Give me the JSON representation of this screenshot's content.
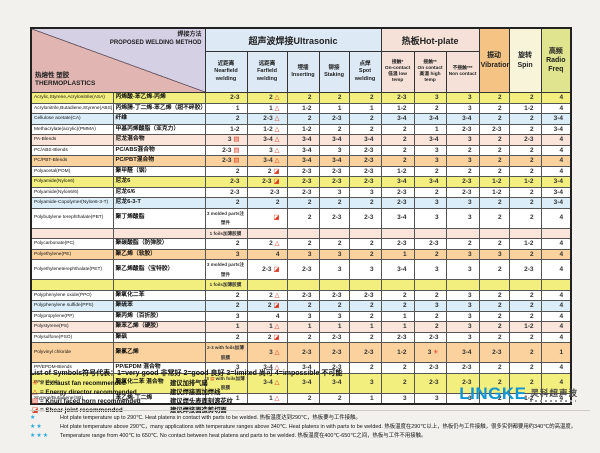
{
  "table": {
    "header": {
      "corner": {
        "method": "焊接方法\nPROPOSED WELDING METHOD",
        "material": "热熔性 塑胶\nTHERMOPLASTICS"
      },
      "groups": [
        {
          "label": "超声波焊接Ultrasonic"
        },
        {
          "label": "热板Hot-plate"
        }
      ],
      "singles": [
        "振动\nVibration",
        "旋转\nSpin",
        "高频\nRadio Freq"
      ],
      "columns": [
        "近距离\nNearfield\nwelding",
        "远距离\nFarfield\nwelding",
        "埋插\nInserting",
        "铆接\nStaking",
        "点焊\nSpot\nwelding",
        "接触*\nOn-contact\n低温 low temp",
        "接触**\nOn contact\n高温 high temp",
        "不接触***\nNon contact"
      ]
    },
    "rows": [
      {
        "en": "Acrylic,Styrene,Acrylonitrile(ASA)",
        "cn": "丙烯酸-苯乙烯-丙烯",
        "color": "yellow",
        "values": [
          "2-3",
          "2 △",
          "2",
          "2",
          "2",
          "2-3",
          "3",
          "3",
          "2",
          "2",
          "4"
        ]
      },
      {
        "en": "Acrylonitrile,Butadiene,Styrene(ABS)",
        "cn": "丙烯腈-丁二烯-苯乙烯（超不碎胶）",
        "color": "white",
        "values": [
          "1",
          "1 △",
          "1-2",
          "1",
          "1",
          "1-2",
          "2",
          "3",
          "2",
          "1-2",
          "4"
        ]
      },
      {
        "en": "Cellulose acetate(CA)",
        "cn": "纤维",
        "color": "blue",
        "values": [
          "2",
          "2-3 △",
          "2",
          "2-3",
          "2",
          "3-4",
          "3-4",
          "3-4",
          "2",
          "2",
          "3-4"
        ]
      },
      {
        "en": "Methacrylate(acrylic)(PMMA)",
        "cn": "甲基丙烯酸脂（亚克力）",
        "color": "white",
        "values": [
          "1-2",
          "1-2 △",
          "1-2",
          "2",
          "2",
          "2",
          "1",
          "2-3",
          "2-3",
          "2",
          "3-4"
        ]
      },
      {
        "en": "PA-Blends",
        "cn": "尼龙混合物",
        "color": "pink",
        "values": [
          "3 ▤",
          "3-4 △",
          "3-4",
          "3-4",
          "3-4",
          "2",
          "3-4",
          "3",
          "2",
          "2-3",
          "4"
        ]
      },
      {
        "en": "PC/ABS-Blends",
        "cn": "PC/ABS混合物",
        "color": "white",
        "values": [
          "2-3 ▤",
          "3 △",
          "3-4",
          "3",
          "2-3",
          "2",
          "3",
          "2",
          "2",
          "2",
          "4"
        ]
      },
      {
        "en": "PC/PBT-Blends",
        "cn": "PC/PBT混合物",
        "color": "orange",
        "values": [
          "2-3 ▤",
          "3-4 △",
          "3-4",
          "3-4",
          "2-3",
          "2",
          "3",
          "3",
          "2",
          "2",
          "4"
        ]
      },
      {
        "en": "Polyacetal(POM)",
        "cn": "聚甲醛（钢）",
        "color": "white",
        "values": [
          "2",
          "2 ◪",
          "2-3",
          "2-3",
          "2-3",
          "1-2",
          "2",
          "2",
          "2",
          "2",
          "4"
        ]
      },
      {
        "en": "Polyamide(Nylon6)",
        "cn": "尼龙6",
        "color": "yellow",
        "values": [
          "2-3",
          "2-3 ◪",
          "2-3",
          "2-3",
          "2-3",
          "3-4",
          "3-4",
          "2-3",
          "1-2",
          "1-2",
          "3-4"
        ]
      },
      {
        "en": "Polyamide(Nylon6/6)",
        "cn": "尼龙6/6",
        "color": "white",
        "values": [
          "2-3",
          "2-3",
          "2-3",
          "3",
          "3",
          "2-3",
          "2",
          "2-3",
          "1-2",
          "2",
          "3-4"
        ]
      },
      {
        "en": "Polyamide-Copolymer(Nylon6-3-T)",
        "cn": "尼龙6-3-T",
        "color": "blue",
        "values": [
          "2",
          "2",
          "2",
          "2",
          "2",
          "2-3",
          "3",
          "3",
          "2",
          "2",
          "3-4"
        ]
      },
      {
        "en": "Polybutylene terephthalate(PBT)",
        "cn": "聚丁烯酸脂",
        "color": "white",
        "values": [
          "3 molded parts注塑件",
          "◪",
          "2",
          "2-3",
          "2-3",
          "3-4",
          "3",
          "3",
          "2",
          "2",
          "4"
        ]
      },
      {
        "en": "",
        "cn": "",
        "color": "pink",
        "values": [
          "1 foils加薄胶膜",
          "",
          "",
          "",
          "",
          "",
          "",
          "",
          "",
          "",
          ""
        ]
      },
      {
        "en": "Polycarbonate(PC)",
        "cn": "聚碳酸脂（防弹胶）",
        "color": "white",
        "values": [
          "2",
          "2 △",
          "2",
          "2",
          "2",
          "2-3",
          "2-3",
          "2",
          "2",
          "1-2",
          "4"
        ]
      },
      {
        "en": "Polyethylene(PE)",
        "cn": "聚乙烯（软胶）",
        "color": "orange",
        "values": [
          "3",
          "4",
          "3",
          "3",
          "2",
          "1",
          "2",
          "3",
          "3",
          "2",
          "4"
        ]
      },
      {
        "en": "Polyethyleneterephthalate(PET)",
        "cn": "聚乙烯酸脂（宝特胶）",
        "color": "white",
        "values": [
          "3 molded parts注塑件",
          "2-3 ◪",
          "2-3",
          "3",
          "3",
          "3-4",
          "3",
          "3",
          "2",
          "2-3",
          "4"
        ]
      },
      {
        "en": "",
        "cn": "",
        "color": "yellow",
        "values": [
          "1 foils加薄胶膜",
          "",
          "",
          "",
          "",
          "",
          "",
          "",
          "",
          "",
          ""
        ]
      },
      {
        "en": "Polyphenylene oxide(PPO)",
        "cn": "聚氧化二苯",
        "color": "white",
        "values": [
          "2",
          "2 △",
          "2-3",
          "2-3",
          "2-3",
          "2",
          "2",
          "3",
          "2",
          "2",
          "4"
        ]
      },
      {
        "en": "Polyphenylene sulfide(PPS)",
        "cn": "聚硫苯",
        "color": "blue",
        "values": [
          "2",
          "2 ◪",
          "2",
          "2",
          "2",
          "2",
          "3",
          "3",
          "2",
          "2",
          "4"
        ]
      },
      {
        "en": "Polypropylene(PP)",
        "cn": "聚丙烯（百折胶）",
        "color": "white",
        "values": [
          "3",
          "4",
          "3",
          "3",
          "2",
          "1",
          "2",
          "3",
          "2",
          "2",
          "4"
        ]
      },
      {
        "en": "Polystyrene(PS)",
        "cn": "聚苯乙烯（硬胶）",
        "color": "pink",
        "values": [
          "1",
          "1 △",
          "1",
          "1",
          "1",
          "1",
          "2",
          "3",
          "2",
          "1-2",
          "4"
        ]
      },
      {
        "en": "Polysulfone(PSO)",
        "cn": "聚砜",
        "color": "white",
        "values": [
          "2",
          "2 ◪",
          "2",
          "2-3",
          "2",
          "2-3",
          "2-3",
          "3",
          "2",
          "2",
          "4"
        ]
      },
      {
        "en": "Polyvinyl chloride",
        "cn": "聚氯乙烯",
        "color": "orange",
        "values": [
          "2-3 with foils加薄胶膜",
          "3 △",
          "2-3",
          "2-3",
          "2-3",
          "1-2",
          "3 ✳",
          "3-4",
          "2-3",
          "2",
          "1"
        ]
      },
      {
        "en": "PP/EPDM-Blends",
        "cn": "PP/EPDM 混合物",
        "color": "white",
        "values": [
          "3",
          "3-4 △",
          "3-4",
          "2-3",
          "2",
          "2",
          "2-3",
          "2-3",
          "2",
          "2",
          "4"
        ]
      },
      {
        "en": "PPO blends",
        "cn": "聚氧化二苯 混合物",
        "color": "yellow",
        "values": [
          "3 ▤ with foils加薄胶膜",
          "3-4 △",
          "3-4",
          "3-4",
          "3",
          "2",
          "2-3",
          "2-3",
          "2",
          "2",
          "4"
        ]
      },
      {
        "en": "Styrene/Butadiene(SB)",
        "cn": "苯乙烯-丁二烯",
        "color": "white",
        "values": [
          "1",
          "1 △",
          "2",
          "2",
          "1",
          "3",
          "3",
          "3",
          "2",
          "1-2",
          "4"
        ]
      }
    ]
  },
  "legend": {
    "title": "List of Symbols符号代表：1=very good 非常好 2=good 良好 3=limited 尚可 4=impossible 不可能",
    "items": [
      {
        "sym": "✳",
        "en": "= Exhaust fan recommended",
        "cn": "建议加排气扇"
      },
      {
        "sym": "△",
        "en": "= Energy director recommended",
        "cn": "建议焊接面加焊线"
      },
      {
        "sym": "▤",
        "en": "= Knurl faced horn recommended",
        "cn": "建议焊头表面刻滚花纹"
      },
      {
        "sym": "◪",
        "en": "= Shear joint recommended",
        "cn": "建议焊接面造剪切面"
      }
    ]
  },
  "notes": [
    {
      "stars": "★",
      "text": "Hot plate temperature up to 290℃. Heat platens in contact with parts to be welded. 热板温度达到290℃，热板要与工件接触。"
    },
    {
      "stars": "★★",
      "text": "Hot plate temperature above 290℃，many applications with temperature ranges above 340℃. Heat platens in with parts to be welded. 热板温度在290℃以上，热板仍与工件接触，很多实例都要用约340℃的高温度。"
    },
    {
      "stars": "★★★",
      "text": "Temperature range from 400℃ to 650℃. No contact between heat platens and parts to be welded. 热板温度在400℃-650℃之间，热板与工件不用接触。"
    }
  ],
  "logo": {
    "en": "LINGKE",
    "cn": "灵科超声波"
  },
  "colors": {
    "symbol_red": "#d93a20",
    "star_blue": "#29a8df",
    "logo_blue": "#1095d4"
  }
}
